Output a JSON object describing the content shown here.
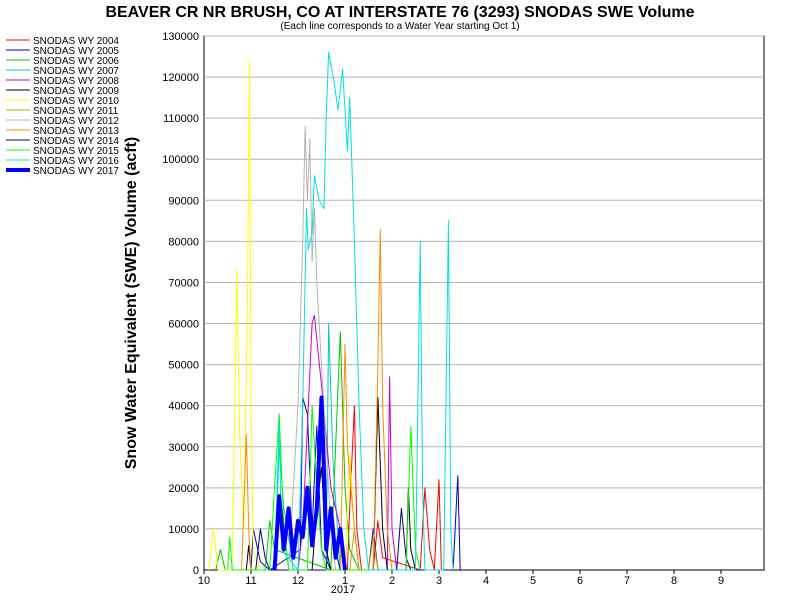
{
  "chart_data": {
    "type": "line",
    "title": "BEAVER CR NR BRUSH, CO AT INTERSTATE 76 (3293) SNODAS SWE Volume",
    "subtitle": "(Each line corresponds to a Water Year starting Oct 1)",
    "ylabel": "Snow Water Equivalent (SWE) Volume (acft)",
    "xlabel": "",
    "year_label": "2017",
    "ylim": [
      0,
      130000
    ],
    "yticks": [
      "0",
      "10000",
      "20000",
      "30000",
      "40000",
      "50000",
      "60000",
      "70000",
      "80000",
      "90000",
      "100000",
      "110000",
      "120000",
      "130000"
    ],
    "xticks": [
      "10",
      "11",
      "12",
      "1",
      "2",
      "3",
      "4",
      "5",
      "6",
      "7",
      "8",
      "9"
    ],
    "grid": "horizontal",
    "legend_position": "left",
    "series": [
      {
        "name": "SNODAS WY 2004",
        "color": "#ff0000",
        "width": 1,
        "points": [
          [
            3.05,
            0
          ],
          [
            3.1,
            15000
          ],
          [
            3.2,
            40000
          ],
          [
            3.25,
            10000
          ],
          [
            3.35,
            0
          ],
          [
            3.6,
            0
          ],
          [
            3.7,
            12000
          ],
          [
            3.8,
            3000
          ],
          [
            4.6,
            0
          ],
          [
            4.7,
            20000
          ],
          [
            4.8,
            5000
          ],
          [
            4.9,
            0
          ],
          [
            5.0,
            22000
          ],
          [
            5.05,
            0
          ]
        ]
      },
      {
        "name": "SNODAS WY 2005",
        "color": "#0000c8",
        "width": 1,
        "points": [
          [
            1.0,
            0
          ],
          [
            1.05,
            10000
          ],
          [
            1.2,
            2000
          ],
          [
            1.4,
            0
          ],
          [
            2.05,
            5000
          ],
          [
            2.1,
            42000
          ],
          [
            2.2,
            38000
          ],
          [
            2.3,
            10000
          ],
          [
            2.4,
            35000
          ],
          [
            2.5,
            5000
          ],
          [
            2.7,
            0
          ],
          [
            3.5,
            0
          ],
          [
            3.6,
            10000
          ],
          [
            3.7,
            0
          ],
          [
            5.3,
            0
          ],
          [
            5.4,
            23000
          ],
          [
            5.45,
            0
          ]
        ]
      },
      {
        "name": "SNODAS WY 2006",
        "color": "#00c800",
        "width": 1,
        "points": [
          [
            0.25,
            0
          ],
          [
            0.35,
            5000
          ],
          [
            0.45,
            0
          ],
          [
            1.3,
            0
          ],
          [
            1.4,
            12000
          ],
          [
            1.5,
            5000
          ],
          [
            2.7,
            0
          ],
          [
            2.8,
            30000
          ],
          [
            2.9,
            58000
          ],
          [
            3.0,
            20000
          ],
          [
            3.1,
            5000
          ],
          [
            3.3,
            0
          ]
        ]
      },
      {
        "name": "SNODAS WY 2007",
        "color": "#00c8c8",
        "width": 1,
        "points": [
          [
            1.5,
            0
          ],
          [
            1.6,
            30000
          ],
          [
            1.7,
            15000
          ],
          [
            1.8,
            8000
          ],
          [
            1.9,
            0
          ],
          [
            2.6,
            0
          ],
          [
            2.65,
            60000
          ],
          [
            2.75,
            25000
          ],
          [
            2.9,
            0
          ]
        ]
      },
      {
        "name": "SNODAS WY 2008",
        "color": "#c800c8",
        "width": 1,
        "points": [
          [
            2.0,
            0
          ],
          [
            2.1,
            10000
          ],
          [
            2.3,
            60000
          ],
          [
            2.35,
            62000
          ],
          [
            2.5,
            45000
          ],
          [
            2.7,
            20000
          ],
          [
            2.9,
            10000
          ],
          [
            3.0,
            0
          ],
          [
            3.9,
            0
          ],
          [
            3.95,
            47000
          ],
          [
            4.0,
            10000
          ],
          [
            4.1,
            0
          ]
        ]
      },
      {
        "name": "SNODAS WY 2009",
        "color": "#000000",
        "width": 1,
        "points": [
          [
            0.9,
            0
          ],
          [
            0.95,
            6000
          ],
          [
            1.0,
            0
          ],
          [
            2.3,
            0
          ],
          [
            2.4,
            15000
          ],
          [
            2.5,
            25000
          ],
          [
            2.6,
            5000
          ],
          [
            2.7,
            0
          ],
          [
            3.6,
            0
          ],
          [
            3.7,
            42000
          ],
          [
            3.8,
            10000
          ],
          [
            3.9,
            0
          ],
          [
            4.3,
            0
          ],
          [
            4.35,
            20000
          ],
          [
            4.4,
            5000
          ],
          [
            4.5,
            0
          ]
        ]
      },
      {
        "name": "SNODAS WY 2010",
        "color": "#ffff00",
        "width": 1,
        "points": [
          [
            0.1,
            0
          ],
          [
            0.2,
            10000
          ],
          [
            0.3,
            0
          ],
          [
            0.6,
            0
          ],
          [
            0.7,
            73000
          ],
          [
            0.75,
            35000
          ],
          [
            0.85,
            10000
          ],
          [
            0.92,
            60000
          ],
          [
            0.97,
            124000
          ],
          [
            1.0,
            40000
          ],
          [
            1.05,
            5000
          ],
          [
            1.2,
            0
          ],
          [
            3.0,
            0
          ],
          [
            3.1,
            28000
          ],
          [
            3.2,
            10000
          ],
          [
            3.3,
            0
          ]
        ]
      },
      {
        "name": "SNODAS WY 2011",
        "color": "#c8a000",
        "width": 1,
        "points": [
          [
            3.1,
            0
          ],
          [
            3.2,
            10000
          ],
          [
            3.3,
            0
          ],
          [
            3.5,
            0
          ],
          [
            3.6,
            8000
          ],
          [
            3.7,
            0
          ]
        ]
      },
      {
        "name": "SNODAS WY 2012",
        "color": "#b4b4b4",
        "width": 1,
        "points": [
          [
            1.8,
            0
          ],
          [
            1.9,
            20000
          ],
          [
            2.0,
            40000
          ],
          [
            2.1,
            80000
          ],
          [
            2.15,
            108000
          ],
          [
            2.2,
            90000
          ],
          [
            2.25,
            105000
          ],
          [
            2.3,
            75000
          ],
          [
            2.35,
            88000
          ],
          [
            2.4,
            70000
          ],
          [
            2.5,
            50000
          ],
          [
            2.6,
            30000
          ],
          [
            2.7,
            10000
          ],
          [
            2.8,
            0
          ]
        ]
      },
      {
        "name": "SNODAS WY 2013",
        "color": "#ff8c00",
        "width": 1,
        "points": [
          [
            0.8,
            0
          ],
          [
            0.9,
            33000
          ],
          [
            0.95,
            10000
          ],
          [
            1.0,
            0
          ],
          [
            2.9,
            0
          ],
          [
            3.0,
            55000
          ],
          [
            3.05,
            30000
          ],
          [
            3.2,
            10000
          ],
          [
            3.3,
            0
          ],
          [
            3.6,
            0
          ],
          [
            3.7,
            50000
          ],
          [
            3.75,
            83000
          ],
          [
            3.8,
            40000
          ],
          [
            3.9,
            10000
          ],
          [
            4.0,
            0
          ]
        ]
      },
      {
        "name": "SNODAS WY 2014",
        "color": "#000080",
        "width": 1,
        "points": [
          [
            1.1,
            0
          ],
          [
            1.2,
            10000
          ],
          [
            1.3,
            3000
          ],
          [
            1.4,
            0
          ],
          [
            2.6,
            0
          ],
          [
            2.7,
            15000
          ],
          [
            2.8,
            5000
          ],
          [
            2.9,
            0
          ],
          [
            4.1,
            0
          ],
          [
            4.2,
            15000
          ],
          [
            4.3,
            3000
          ],
          [
            4.4,
            0
          ]
        ]
      },
      {
        "name": "SNODAS WY 2015",
        "color": "#00ff00",
        "width": 1,
        "points": [
          [
            0.5,
            0
          ],
          [
            0.55,
            8000
          ],
          [
            0.6,
            0
          ],
          [
            1.4,
            0
          ],
          [
            1.5,
            20000
          ],
          [
            1.6,
            38000
          ],
          [
            1.7,
            10000
          ],
          [
            1.8,
            0
          ],
          [
            2.2,
            0
          ],
          [
            2.3,
            40000
          ],
          [
            2.4,
            20000
          ],
          [
            2.5,
            5000
          ],
          [
            2.6,
            0
          ],
          [
            4.3,
            0
          ],
          [
            4.4,
            35000
          ],
          [
            4.5,
            5000
          ],
          [
            4.6,
            0
          ]
        ]
      },
      {
        "name": "SNODAS WY 2016",
        "color": "#00e0e0",
        "width": 1,
        "points": [
          [
            1.5,
            0
          ],
          [
            1.6,
            36000
          ],
          [
            1.65,
            5000
          ],
          [
            2.0,
            0
          ],
          [
            2.1,
            40000
          ],
          [
            2.18,
            88000
          ],
          [
            2.22,
            78000
          ],
          [
            2.3,
            82000
          ],
          [
            2.35,
            96000
          ],
          [
            2.45,
            90000
          ],
          [
            2.55,
            88000
          ],
          [
            2.6,
            110000
          ],
          [
            2.65,
            126000
          ],
          [
            2.75,
            120000
          ],
          [
            2.85,
            112000
          ],
          [
            2.95,
            122000
          ],
          [
            3.05,
            102000
          ],
          [
            3.1,
            115000
          ],
          [
            3.2,
            80000
          ],
          [
            3.3,
            40000
          ],
          [
            3.4,
            10000
          ],
          [
            3.5,
            0
          ],
          [
            4.5,
            0
          ],
          [
            4.6,
            80000
          ],
          [
            4.65,
            20000
          ],
          [
            4.7,
            0
          ],
          [
            5.1,
            0
          ],
          [
            5.2,
            85000
          ],
          [
            5.25,
            10000
          ],
          [
            5.3,
            0
          ]
        ]
      },
      {
        "name": "SNODAS WY 2017",
        "color": "#0000ff",
        "width": 4,
        "points": [
          [
            1.5,
            0
          ],
          [
            1.6,
            18000
          ],
          [
            1.7,
            5000
          ],
          [
            1.8,
            15000
          ],
          [
            1.9,
            3000
          ],
          [
            2.0,
            12000
          ],
          [
            2.1,
            8000
          ],
          [
            2.2,
            20000
          ],
          [
            2.3,
            6000
          ],
          [
            2.4,
            15000
          ],
          [
            2.5,
            42000
          ],
          [
            2.55,
            25000
          ],
          [
            2.6,
            5000
          ],
          [
            2.7,
            15000
          ],
          [
            2.8,
            3000
          ],
          [
            2.9,
            10000
          ],
          [
            3.0,
            0
          ]
        ]
      }
    ]
  }
}
